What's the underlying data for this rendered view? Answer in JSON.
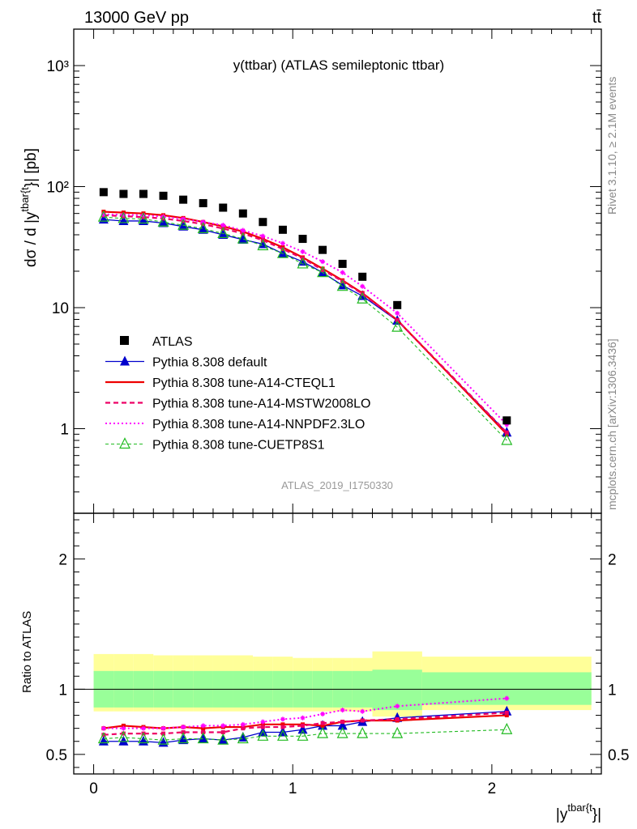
{
  "header": {
    "left": "13000 GeV pp",
    "right": "tt̄"
  },
  "side_labels": {
    "rivet": "Rivet 3.1.10, ≥ 2.1M events",
    "mcplots": "mcplots.cern.ch [arXiv:1306.3436]"
  },
  "chart_data": {
    "type": "scatter",
    "title": "y(ttbar) (ATLAS semileptonic ttbar)",
    "watermark": "ATLAS_2019_I1750330",
    "ylabel": "dσ / d |y^{tbar{t}}| [pb]",
    "ylabel_parts": {
      "main": "dσ / d |y",
      "sup": "tbar{t",
      "end": "}| [pb]"
    },
    "xlabel_parts": {
      "main": "|y",
      "sup": "tbar{t",
      "end": "}|"
    },
    "xlim": [
      -0.1,
      2.55
    ],
    "ylim": [
      0.2,
      2000
    ],
    "yscale": "log",
    "x_ticks": [
      "0",
      "1",
      "2"
    ],
    "y_ticks": [
      "1",
      "10",
      "10²",
      "10³"
    ],
    "x": [
      0.05,
      0.15,
      0.25,
      0.35,
      0.45,
      0.55,
      0.65,
      0.75,
      0.85,
      0.95,
      1.05,
      1.15,
      1.25,
      1.35,
      1.525,
      2.075
    ],
    "atlas_bins": [
      [
        0.0,
        0.1
      ],
      [
        0.1,
        0.2
      ],
      [
        0.2,
        0.3
      ],
      [
        0.3,
        0.4
      ],
      [
        0.4,
        0.5
      ],
      [
        0.5,
        0.6
      ],
      [
        0.6,
        0.7
      ],
      [
        0.7,
        0.8
      ],
      [
        0.8,
        0.9
      ],
      [
        0.9,
        1.0
      ],
      [
        1.0,
        1.1
      ],
      [
        1.1,
        1.2
      ],
      [
        1.2,
        1.3
      ],
      [
        1.3,
        1.4
      ],
      [
        1.4,
        1.65
      ],
      [
        1.65,
        2.5
      ]
    ],
    "series": [
      {
        "name": "ATLAS",
        "style": "data",
        "color": "#000000",
        "values": [
          90,
          87,
          87,
          84,
          78,
          73,
          67,
          60,
          51,
          44,
          37,
          30,
          23,
          18,
          10.5,
          1.17
        ]
      },
      {
        "name": "Pythia 8.308 default",
        "style": "line-fill-triangle",
        "color": "#0000cc",
        "values": [
          53.5,
          52,
          52,
          50,
          46.8,
          44,
          40,
          36.5,
          33.5,
          28,
          24,
          19.5,
          15.3,
          12.5,
          7.8,
          0.93
        ]
      },
      {
        "name": "Pythia 8.308 tune-A14-CTEQL1",
        "style": "solid",
        "color": "#ee0000",
        "values": [
          62,
          61,
          60,
          58,
          55,
          51,
          47,
          42.5,
          37,
          31.5,
          26,
          21,
          16.8,
          13.2,
          7.9,
          0.9
        ]
      },
      {
        "name": "Pythia 8.308 tune-A14-MSTW2008LO",
        "style": "dashed",
        "color": "#ee0066",
        "values": [
          58,
          57,
          56,
          54.5,
          52,
          49,
          45,
          41,
          36,
          30.5,
          25.5,
          20.5,
          16.5,
          13.0,
          7.9,
          0.93
        ]
      },
      {
        "name": "Pythia 8.308 tune-A14-NNPDF2.3LO",
        "style": "dotted",
        "color": "#ff00ff",
        "values": [
          59,
          58.5,
          58,
          56.5,
          54,
          51,
          48,
          43.5,
          39,
          34,
          29,
          24,
          19.5,
          15,
          9.0,
          1.08
        ]
      },
      {
        "name": "Pythia 8.308 tune-CUETP8S1",
        "style": "dashed-open-triangle",
        "color": "#22bb22",
        "values": [
          56,
          54.5,
          54,
          51,
          48,
          45,
          41,
          37,
          32.5,
          28,
          23,
          19.5,
          15,
          11.8,
          6.9,
          0.8
        ]
      }
    ],
    "ratio": {
      "ylabel": "Ratio to ATLAS",
      "ylim": [
        0.35,
        2.35
      ],
      "y_ticks": [
        "0.5",
        "1",
        "2"
      ],
      "band_inner": [
        [
          0.86,
          1.14
        ],
        [
          0.86,
          1.14
        ],
        [
          0.86,
          1.14
        ],
        [
          0.86,
          1.14
        ],
        [
          0.86,
          1.14
        ],
        [
          0.86,
          1.14
        ],
        [
          0.86,
          1.14
        ],
        [
          0.86,
          1.14
        ],
        [
          0.86,
          1.14
        ],
        [
          0.86,
          1.14
        ],
        [
          0.86,
          1.14
        ],
        [
          0.86,
          1.14
        ],
        [
          0.86,
          1.14
        ],
        [
          0.86,
          1.14
        ],
        [
          0.84,
          1.15
        ],
        [
          0.88,
          1.13
        ]
      ],
      "band_outer": [
        [
          0.83,
          1.27
        ],
        [
          0.83,
          1.27
        ],
        [
          0.83,
          1.27
        ],
        [
          0.83,
          1.26
        ],
        [
          0.83,
          1.26
        ],
        [
          0.83,
          1.26
        ],
        [
          0.83,
          1.26
        ],
        [
          0.83,
          1.26
        ],
        [
          0.83,
          1.25
        ],
        [
          0.83,
          1.25
        ],
        [
          0.83,
          1.24
        ],
        [
          0.83,
          1.24
        ],
        [
          0.83,
          1.24
        ],
        [
          0.83,
          1.24
        ],
        [
          0.79,
          1.29
        ],
        [
          0.84,
          1.25
        ]
      ],
      "series": [
        {
          "name": "Pythia 8.308 default",
          "values": [
            0.6,
            0.6,
            0.6,
            0.59,
            0.61,
            0.62,
            0.61,
            0.63,
            0.67,
            0.67,
            0.69,
            0.72,
            0.72,
            0.75,
            0.78,
            0.83
          ]
        },
        {
          "name": "Pythia 8.308 tune-A14-CTEQL1",
          "values": [
            0.7,
            0.72,
            0.71,
            0.7,
            0.71,
            0.7,
            0.71,
            0.71,
            0.73,
            0.73,
            0.73,
            0.72,
            0.75,
            0.76,
            0.76,
            0.8
          ]
        },
        {
          "name": "Pythia 8.308 tune-A14-MSTW2008LO",
          "values": [
            0.65,
            0.66,
            0.66,
            0.66,
            0.67,
            0.67,
            0.67,
            0.7,
            0.71,
            0.71,
            0.72,
            0.74,
            0.75,
            0.76,
            0.77,
            0.82
          ]
        },
        {
          "name": "Pythia 8.308 tune-A14-NNPDF2.3LO",
          "values": [
            0.7,
            0.7,
            0.7,
            0.7,
            0.71,
            0.72,
            0.72,
            0.73,
            0.75,
            0.77,
            0.78,
            0.81,
            0.84,
            0.83,
            0.87,
            0.93
          ]
        },
        {
          "name": "Pythia 8.308 tune-CUETP8S1",
          "values": [
            0.62,
            0.63,
            0.62,
            0.61,
            0.62,
            0.62,
            0.61,
            0.62,
            0.64,
            0.64,
            0.64,
            0.66,
            0.66,
            0.66,
            0.66,
            0.69
          ]
        }
      ]
    }
  }
}
